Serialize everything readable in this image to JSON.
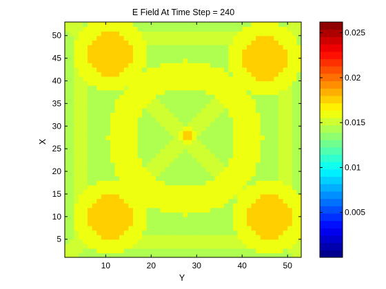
{
  "chart_data": {
    "type": "heatmap",
    "title": "E Field At Time Step = 240",
    "xlabel": "Y",
    "ylabel": "X",
    "xlim": [
      1,
      53
    ],
    "ylim": [
      1,
      53
    ],
    "xticks": [
      10,
      20,
      30,
      40,
      50
    ],
    "yticks": [
      5,
      10,
      15,
      20,
      25,
      30,
      35,
      40,
      45,
      50
    ],
    "grid": false,
    "colormap": "jet",
    "colorbar": {
      "range": [
        0,
        0.0262
      ],
      "ticks": [
        0.005,
        0.01,
        0.015,
        0.02,
        0.025
      ],
      "levels": 32,
      "position": "right"
    },
    "field": {
      "grid_size": [
        53,
        53
      ],
      "background": 0.0143,
      "ring": {
        "center": [
          27.5,
          27.5
        ],
        "radius": 14,
        "width": 3,
        "value": 0.0156
      },
      "center_spot": {
        "center": [
          28,
          28
        ],
        "value": 0.0172
      },
      "corner_hotspots": [
        {
          "x": 11,
          "y": 46,
          "value": 0.0175
        },
        {
          "x": 45,
          "y": 45,
          "value": 0.0175
        },
        {
          "x": 11,
          "y": 10,
          "value": 0.0175
        },
        {
          "x": 46,
          "y": 10,
          "value": 0.0175
        }
      ]
    }
  }
}
